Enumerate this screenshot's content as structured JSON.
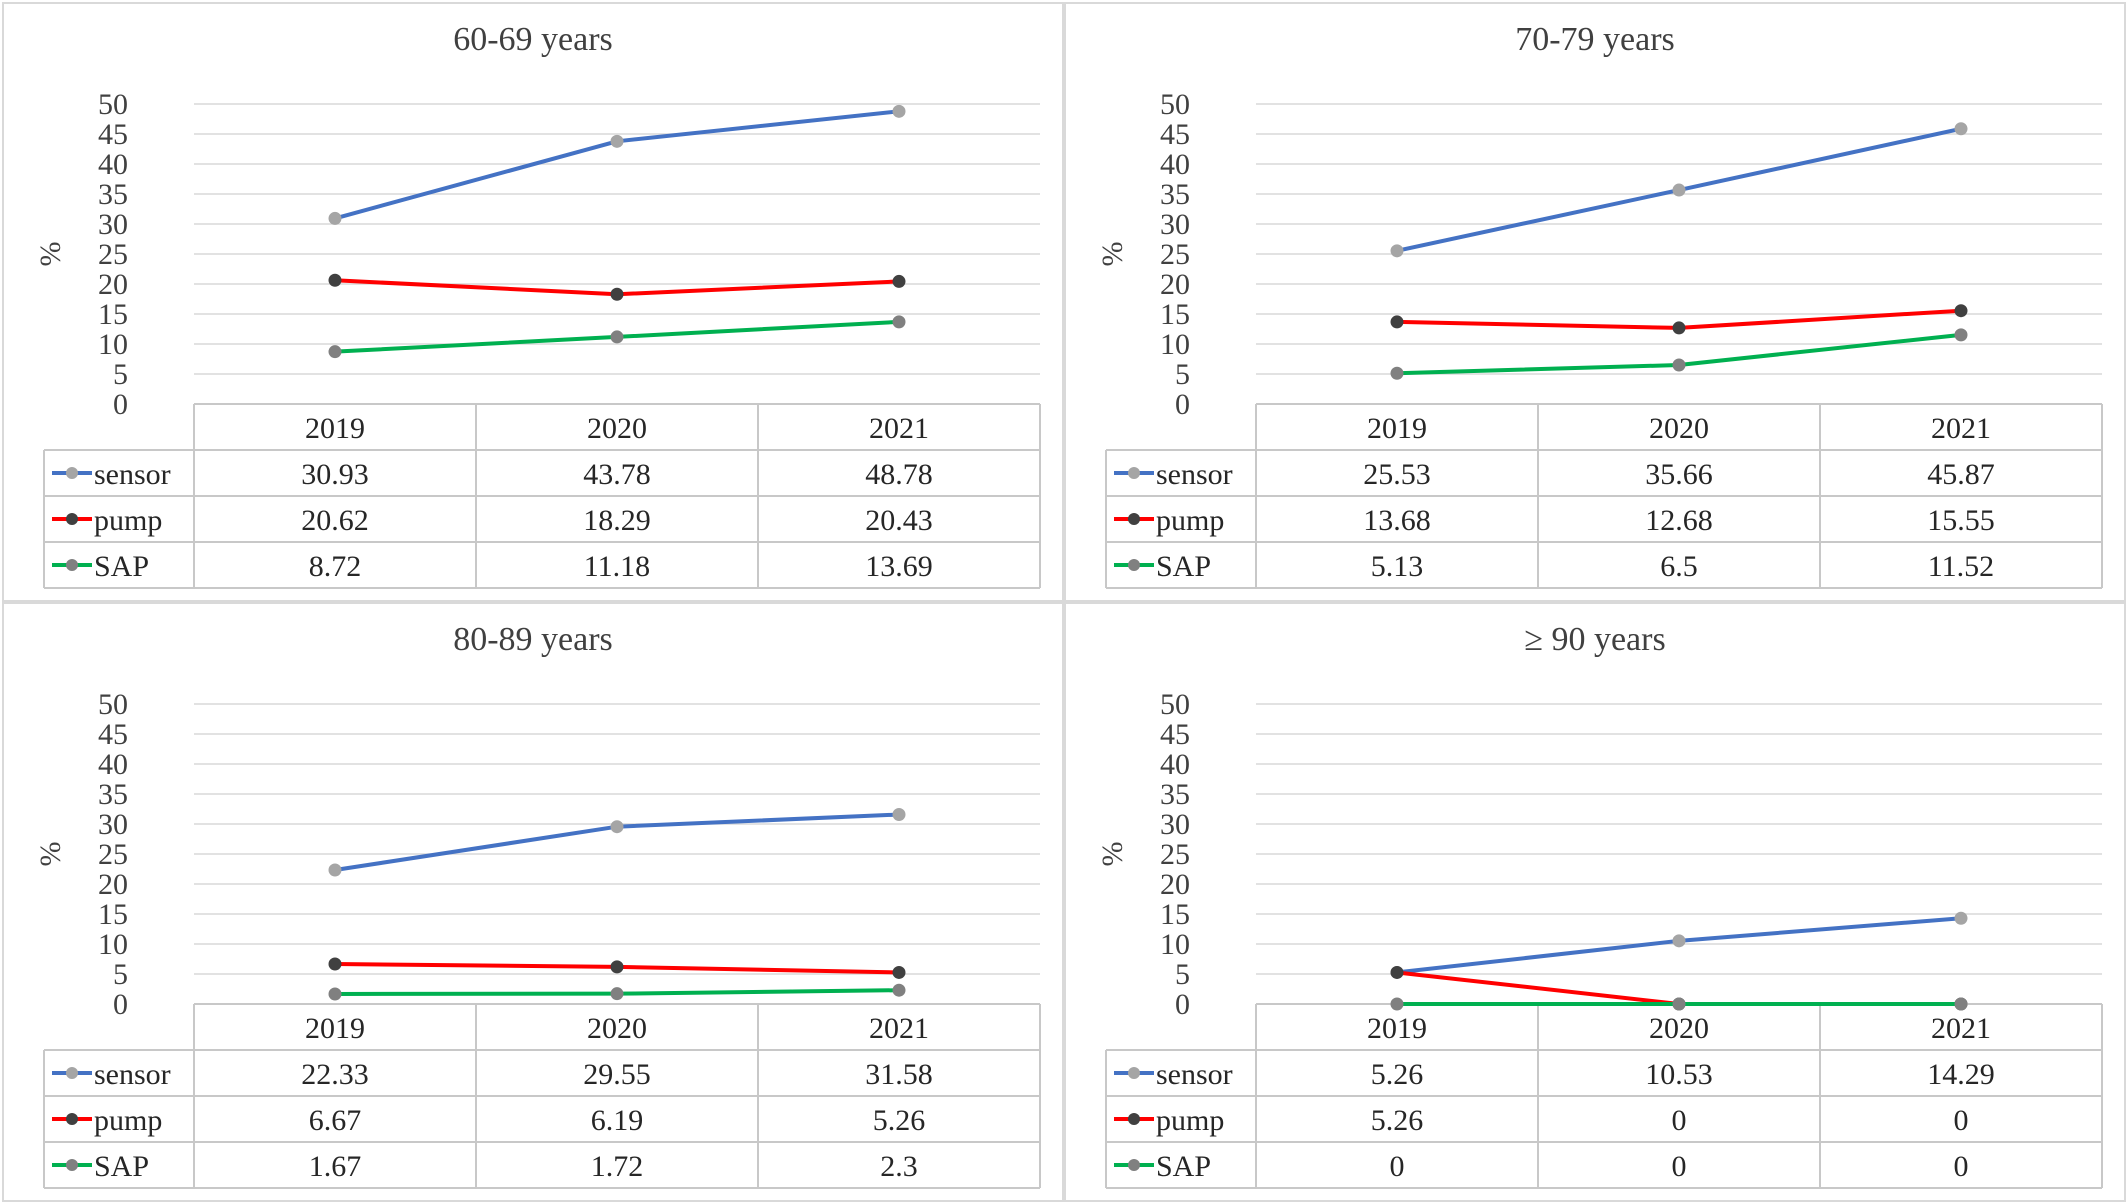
{
  "ylabel": "%",
  "categories": [
    "2019",
    "2020",
    "2021"
  ],
  "series_style": [
    {
      "name": "sensor",
      "color": "#4472c4",
      "marker": "#a5a5a5"
    },
    {
      "name": "pump",
      "color": "#ff0000",
      "marker": "#404040"
    },
    {
      "name": "SAP",
      "color": "#00b050",
      "marker": "#808080"
    }
  ],
  "chart_data": [
    {
      "type": "line",
      "title": "60-69 years",
      "ylabel": "%",
      "ylim": [
        0,
        50
      ],
      "yticks": [
        0,
        5,
        10,
        15,
        20,
        25,
        30,
        35,
        40,
        45,
        50
      ],
      "categories": [
        "2019",
        "2020",
        "2021"
      ],
      "series": [
        {
          "name": "sensor",
          "values": [
            30.93,
            43.78,
            48.78
          ]
        },
        {
          "name": "pump",
          "values": [
            20.62,
            18.29,
            20.43
          ]
        },
        {
          "name": "SAP",
          "values": [
            8.72,
            11.18,
            13.69
          ]
        }
      ],
      "table_values": [
        [
          "30.93",
          "43.78",
          "48.78"
        ],
        [
          "20.62",
          "18.29",
          "20.43"
        ],
        [
          "8.72",
          "11.18",
          "13.69"
        ]
      ],
      "grid": true,
      "legend": "data-table"
    },
    {
      "type": "line",
      "title": "70-79 years",
      "ylabel": "%",
      "ylim": [
        0,
        50
      ],
      "yticks": [
        0,
        5,
        10,
        15,
        20,
        25,
        30,
        35,
        40,
        45,
        50
      ],
      "categories": [
        "2019",
        "2020",
        "2021"
      ],
      "series": [
        {
          "name": "sensor",
          "values": [
            25.53,
            35.66,
            45.87
          ]
        },
        {
          "name": "pump",
          "values": [
            13.68,
            12.68,
            15.55
          ]
        },
        {
          "name": "SAP",
          "values": [
            5.13,
            6.5,
            11.52
          ]
        }
      ],
      "table_values": [
        [
          "25.53",
          "35.66",
          "45.87"
        ],
        [
          "13.68",
          "12.68",
          "15.55"
        ],
        [
          "5.13",
          "6.5",
          "11.52"
        ]
      ],
      "grid": true,
      "legend": "data-table"
    },
    {
      "type": "line",
      "title": "80-89 years",
      "ylabel": "%",
      "ylim": [
        0,
        50
      ],
      "yticks": [
        0,
        5,
        10,
        15,
        20,
        25,
        30,
        35,
        40,
        45,
        50
      ],
      "categories": [
        "2019",
        "2020",
        "2021"
      ],
      "series": [
        {
          "name": "sensor",
          "values": [
            22.33,
            29.55,
            31.58
          ]
        },
        {
          "name": "pump",
          "values": [
            6.67,
            6.19,
            5.26
          ]
        },
        {
          "name": "SAP",
          "values": [
            1.67,
            1.72,
            2.3
          ]
        }
      ],
      "table_values": [
        [
          "22.33",
          "29.55",
          "31.58"
        ],
        [
          "6.67",
          "6.19",
          "5.26"
        ],
        [
          "1.67",
          "1.72",
          "2.3"
        ]
      ],
      "grid": true,
      "legend": "data-table"
    },
    {
      "type": "line",
      "title": "≥ 90 years",
      "ylabel": "%",
      "ylim": [
        0,
        50
      ],
      "yticks": [
        0,
        5,
        10,
        15,
        20,
        25,
        30,
        35,
        40,
        45,
        50
      ],
      "categories": [
        "2019",
        "2020",
        "2021"
      ],
      "series": [
        {
          "name": "sensor",
          "values": [
            5.26,
            10.53,
            14.29
          ]
        },
        {
          "name": "pump",
          "values": [
            5.26,
            0,
            0
          ]
        },
        {
          "name": "SAP",
          "values": [
            0,
            0,
            0
          ]
        }
      ],
      "table_values": [
        [
          "5.26",
          "10.53",
          "14.29"
        ],
        [
          "5.26",
          "0",
          "0"
        ],
        [
          "0",
          "0",
          "0"
        ]
      ],
      "grid": true,
      "legend": "data-table"
    }
  ]
}
